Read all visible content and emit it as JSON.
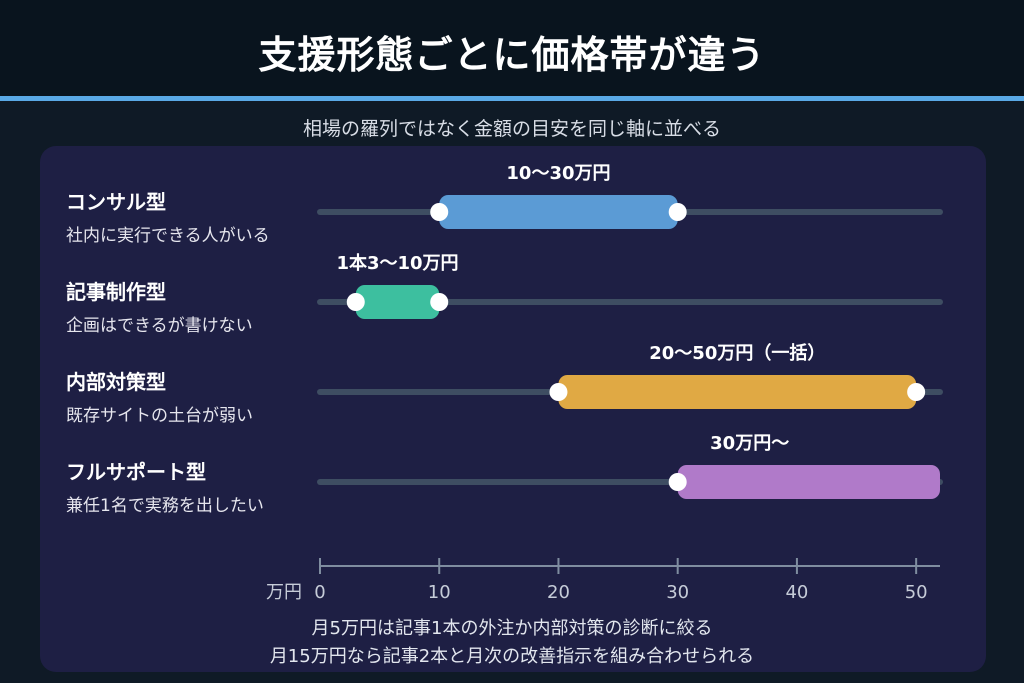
{
  "header": {
    "title": "支援形態ごとに価格帯が違う",
    "subtitle": "相場の羅列ではなく金額の目安を同じ軸に並べる"
  },
  "chart_data": {
    "type": "range_bar",
    "xlim": [
      0,
      52
    ],
    "x_ticks": [
      "0",
      "10",
      "20",
      "30",
      "40",
      "50"
    ],
    "x_tick_values": [
      0,
      10,
      20,
      30,
      40,
      50
    ],
    "x_unit": "万円",
    "rows": [
      {
        "name": "コンサル型",
        "desc": "社内に実行できる人がいる",
        "start": 10,
        "end": 30,
        "open_end": false,
        "label": "10〜30万円",
        "color": "#5b9bd5"
      },
      {
        "name": "記事制作型",
        "desc": "企画はできるが書けない",
        "start": 3,
        "end": 10,
        "open_end": false,
        "label": "1本3〜10万円",
        "color": "#3dbf9f"
      },
      {
        "name": "内部対策型",
        "desc": "既存サイトの土台が弱い",
        "start": 20,
        "end": 50,
        "open_end": false,
        "label": "20〜50万円（一括）",
        "color": "#e0a944"
      },
      {
        "name": "フルサポート型",
        "desc": "兼任1名で実務を出したい",
        "start": 30,
        "end": 52,
        "open_end": true,
        "label": "30万円〜",
        "color": "#b07ac9"
      }
    ]
  },
  "footnotes": [
    "月5万円は記事1本の外注か内部対策の診断に絞る",
    "月15万円なら記事2本と月次の改善指示を組み合わせられる"
  ]
}
